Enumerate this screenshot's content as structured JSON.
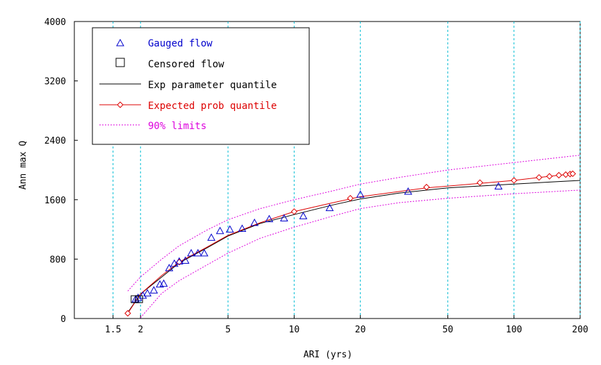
{
  "chart_data": {
    "type": "scatter",
    "title": "",
    "xlabel": "ARI (yrs)",
    "ylabel": "Ann max Q",
    "x_scale": "log",
    "xlim": [
      1.0,
      200
    ],
    "ylim": [
      0,
      4000
    ],
    "x_ticks": [
      {
        "value": 1.5,
        "label": "1.5"
      },
      {
        "value": 2,
        "label": "2"
      },
      {
        "value": 5,
        "label": "5"
      },
      {
        "value": 10,
        "label": "10"
      },
      {
        "value": 20,
        "label": "20"
      },
      {
        "value": 50,
        "label": "50"
      },
      {
        "value": 100,
        "label": "100"
      },
      {
        "value": 200,
        "label": "200"
      }
    ],
    "y_ticks": [
      {
        "value": 0,
        "label": "0"
      },
      {
        "value": 800,
        "label": "800"
      },
      {
        "value": 1600,
        "label": "1600"
      },
      {
        "value": 2400,
        "label": "2400"
      },
      {
        "value": 3200,
        "label": "3200"
      },
      {
        "value": 4000,
        "label": "4000"
      }
    ],
    "grid": "vertical dashed at x ticks",
    "legend_position": "top-left",
    "series": [
      {
        "name": "Gauged flow",
        "kind": "markers",
        "marker": "triangle",
        "color": "#0000cc",
        "points": [
          [
            1.9,
            260
          ],
          [
            1.95,
            280
          ],
          [
            2.05,
            310
          ],
          [
            2.15,
            340
          ],
          [
            2.3,
            380
          ],
          [
            2.45,
            460
          ],
          [
            2.55,
            470
          ],
          [
            2.7,
            680
          ],
          [
            2.85,
            740
          ],
          [
            3.0,
            770
          ],
          [
            3.2,
            780
          ],
          [
            3.4,
            880
          ],
          [
            3.65,
            880
          ],
          [
            3.9,
            880
          ],
          [
            4.2,
            1090
          ],
          [
            4.6,
            1180
          ],
          [
            5.1,
            1200
          ],
          [
            5.8,
            1210
          ],
          [
            6.6,
            1290
          ],
          [
            7.7,
            1340
          ],
          [
            9.0,
            1350
          ],
          [
            11.0,
            1380
          ],
          [
            14.5,
            1490
          ],
          [
            20.0,
            1670
          ],
          [
            33.0,
            1710
          ],
          [
            85.0,
            1780
          ]
        ]
      },
      {
        "name": "Censored flow",
        "kind": "markers",
        "marker": "square",
        "color": "#000000",
        "points": [
          [
            1.88,
            260
          ],
          [
            1.97,
            260
          ]
        ]
      },
      {
        "name": "Exp parameter quantile",
        "kind": "line",
        "color": "#000000",
        "points": [
          [
            1.75,
            80
          ],
          [
            2,
            330
          ],
          [
            2.5,
            560
          ],
          [
            3,
            750
          ],
          [
            4,
            950
          ],
          [
            5,
            1110
          ],
          [
            7,
            1280
          ],
          [
            10,
            1400
          ],
          [
            15,
            1530
          ],
          [
            20,
            1610
          ],
          [
            30,
            1690
          ],
          [
            50,
            1760
          ],
          [
            100,
            1810
          ],
          [
            150,
            1840
          ],
          [
            200,
            1860
          ]
        ]
      },
      {
        "name": "Expected prob quantile",
        "kind": "line-markers",
        "marker": "diamond",
        "color": "#dd0000",
        "points": [
          [
            1.75,
            70
          ],
          [
            2,
            330
          ],
          [
            2.5,
            580
          ],
          [
            3,
            760
          ],
          [
            4,
            960
          ],
          [
            5,
            1120
          ],
          [
            7,
            1290
          ],
          [
            10,
            1440
          ],
          [
            15,
            1560
          ],
          [
            20,
            1640
          ],
          [
            30,
            1710
          ],
          [
            40,
            1760
          ],
          [
            70,
            1820
          ],
          [
            100,
            1860
          ],
          [
            130,
            1900
          ],
          [
            150,
            1920
          ],
          [
            160,
            1930
          ],
          [
            170,
            1935
          ],
          [
            175,
            1940
          ],
          [
            180,
            1945
          ],
          [
            185,
            1950
          ]
        ],
        "marker_points": [
          [
            1.75,
            70
          ],
          [
            3,
            760
          ],
          [
            10,
            1440
          ],
          [
            18,
            1620
          ],
          [
            40,
            1770
          ],
          [
            70,
            1830
          ],
          [
            100,
            1860
          ],
          [
            130,
            1900
          ],
          [
            145,
            1915
          ],
          [
            160,
            1930
          ],
          [
            172,
            1938
          ],
          [
            180,
            1945
          ],
          [
            185,
            1950
          ]
        ]
      },
      {
        "name": "90% limits",
        "kind": "dotted-lines",
        "color": "#dd00dd",
        "upper": [
          [
            1.75,
            370
          ],
          [
            2,
            560
          ],
          [
            2.5,
            800
          ],
          [
            3,
            980
          ],
          [
            4,
            1190
          ],
          [
            5,
            1330
          ],
          [
            7,
            1480
          ],
          [
            10,
            1600
          ],
          [
            15,
            1720
          ],
          [
            20,
            1810
          ],
          [
            30,
            1900
          ],
          [
            50,
            2000
          ],
          [
            100,
            2100
          ],
          [
            200,
            2200
          ]
        ],
        "lower": [
          [
            2,
            10
          ],
          [
            2.5,
            340
          ],
          [
            3,
            510
          ],
          [
            4,
            720
          ],
          [
            5,
            880
          ],
          [
            7,
            1080
          ],
          [
            10,
            1230
          ],
          [
            15,
            1380
          ],
          [
            20,
            1480
          ],
          [
            30,
            1560
          ],
          [
            50,
            1620
          ],
          [
            100,
            1680
          ],
          [
            200,
            1730
          ]
        ]
      }
    ]
  }
}
